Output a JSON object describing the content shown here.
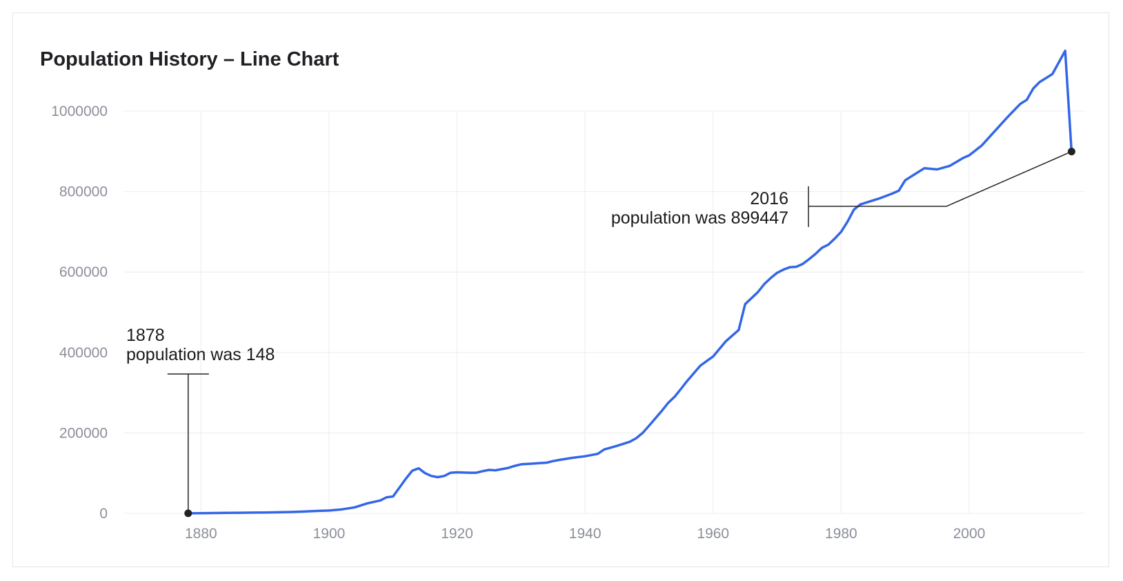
{
  "chart_data": {
    "type": "line",
    "title": "Population History – Line Chart",
    "xlabel": "",
    "ylabel": "",
    "xlim": [
      1868,
      2018
    ],
    "ylim": [
      0,
      1000000
    ],
    "x_ticks": [
      1880,
      1900,
      1920,
      1940,
      1960,
      1980,
      2000
    ],
    "y_ticks": [
      0,
      200000,
      400000,
      600000,
      800000,
      1000000
    ],
    "grid": true,
    "color": "#3366e6",
    "series": [
      {
        "x": [
          1878,
          1880,
          1882,
          1884,
          1886,
          1888,
          1890,
          1892,
          1894,
          1896,
          1898,
          1900,
          1902,
          1904,
          1906,
          1908,
          1909,
          1910,
          1912,
          1913,
          1914,
          1915,
          1916,
          1917,
          1918,
          1919,
          1920,
          1922,
          1923,
          1924,
          1925,
          1926,
          1927,
          1928,
          1929,
          1930,
          1932,
          1934,
          1935,
          1936,
          1938,
          1940,
          1942,
          1943,
          1945,
          1947,
          1948,
          1949,
          1950,
          1952,
          1953,
          1954,
          1955,
          1956,
          1958,
          1960,
          1962,
          1964,
          1965,
          1967,
          1968,
          1969,
          1970,
          1971,
          1972,
          1973,
          1974,
          1975,
          1976,
          1977,
          1978,
          1979,
          1980,
          1981,
          1982,
          1983,
          1984,
          1986,
          1988,
          1989,
          1990,
          1992,
          1993,
          1995,
          1997,
          1999,
          2000,
          2002,
          2004,
          2006,
          2008,
          2009,
          2010,
          2011,
          2013,
          2015,
          2016
        ],
        "y": [
          148,
          500,
          900,
          1300,
          1600,
          1900,
          2200,
          2800,
          3500,
          4500,
          6000,
          7000,
          10000,
          15000,
          25000,
          32000,
          40000,
          42000,
          86000,
          106000,
          112000,
          100000,
          93000,
          90000,
          93000,
          101000,
          102000,
          101000,
          101000,
          105000,
          108000,
          107000,
          110000,
          113000,
          118000,
          122000,
          124000,
          126000,
          130000,
          133000,
          138000,
          142000,
          148000,
          159000,
          168000,
          178000,
          187000,
          200000,
          218000,
          255000,
          275000,
          290000,
          310000,
          330000,
          367000,
          390000,
          428000,
          456000,
          520000,
          550000,
          570000,
          585000,
          598000,
          606000,
          612000,
          613000,
          620000,
          632000,
          645000,
          660000,
          668000,
          683000,
          700000,
          725000,
          755000,
          768000,
          773000,
          783000,
          795000,
          802000,
          828000,
          848000,
          858000,
          855000,
          864000,
          883000,
          890000,
          915000,
          950000,
          985000,
          1018000,
          1028000,
          1056000,
          1072000,
          1092000,
          1150000,
          899447
        ]
      }
    ],
    "annotations": [
      {
        "year_label": "1878",
        "text": "population was 148"
      },
      {
        "year_label": "2016",
        "text": "population was 899447"
      }
    ]
  }
}
